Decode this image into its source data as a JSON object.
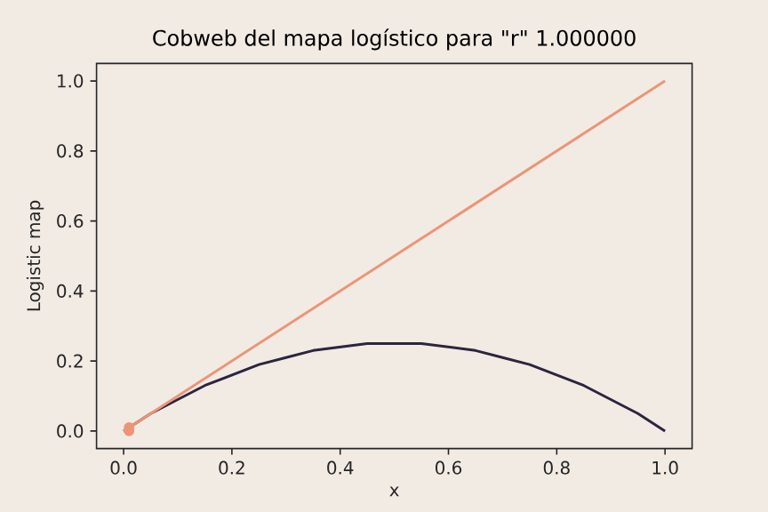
{
  "chart_data": {
    "type": "line",
    "title": "Cobweb del mapa logístico para \"r\" 1.000000",
    "xlabel": "x",
    "ylabel": "Logistic map",
    "xlim": [
      -0.05,
      1.05
    ],
    "ylim": [
      -0.05,
      1.05
    ],
    "xticks": [
      {
        "value": 0,
        "label": "0.0"
      },
      {
        "value": 0.2,
        "label": "0.2"
      },
      {
        "value": 0.4,
        "label": "0.4"
      },
      {
        "value": 0.6,
        "label": "0.6"
      },
      {
        "value": 0.8,
        "label": "0.8"
      },
      {
        "value": 1,
        "label": "1.0"
      }
    ],
    "yticks": [
      {
        "value": 0,
        "label": "0.0"
      },
      {
        "value": 0.2,
        "label": "0.2"
      },
      {
        "value": 0.4,
        "label": "0.4"
      },
      {
        "value": 0.6,
        "label": "0.6"
      },
      {
        "value": 0.8,
        "label": "0.8"
      },
      {
        "value": 1,
        "label": "1.0"
      }
    ],
    "series": [
      {
        "color": "#2b2540",
        "x": [
          0,
          0.05,
          0.1,
          0.15,
          0.2,
          0.25,
          0.3,
          0.35,
          0.4,
          0.45,
          0.5,
          0.55,
          0.6,
          0.65,
          0.7,
          0.75,
          0.8,
          0.85,
          0.9,
          0.95,
          1
        ],
        "values": [
          0,
          0.05,
          0.09,
          0.13,
          0.16,
          0.19,
          0.21,
          0.23,
          0.24,
          0.25,
          0.25,
          0.25,
          0.24,
          0.23,
          0.21,
          0.19,
          0.16,
          0.13,
          0.09,
          0.05,
          0
        ]
      },
      {
        "color": "#ec9577",
        "x": [
          0,
          1
        ],
        "values": [
          0,
          1
        ]
      },
      {
        "type": "scatter",
        "color": "#ec9577",
        "marker": "circle",
        "x": [
          0.01,
          0.01
        ],
        "values": [
          0,
          0.01
        ]
      }
    ]
  }
}
